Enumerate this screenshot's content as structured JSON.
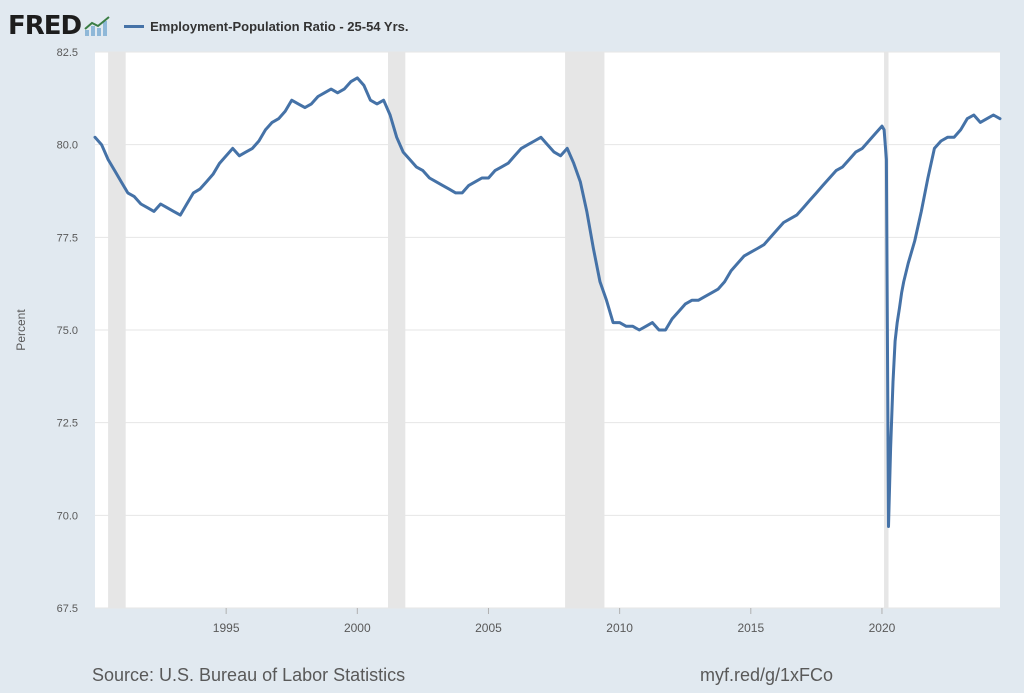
{
  "header": {
    "logo_text": "FRED",
    "logo_icon": "line-chart-icon"
  },
  "colors": {
    "background": "#e1e9f0",
    "plot_background": "#ffffff",
    "line": "#4572a7",
    "recession": "#e6e6e6",
    "grid": "#e6e6e6",
    "tick_text": "#595959",
    "legend_text": "#333333"
  },
  "chart_data": {
    "type": "line",
    "title": "",
    "ylabel": "Percent",
    "xlabel": "",
    "x_unit": "year",
    "ylim": [
      67.5,
      82.5
    ],
    "xlim": [
      1990.0,
      2024.5
    ],
    "y_ticks": [
      "67.5",
      "70.0",
      "72.5",
      "75.0",
      "77.5",
      "80.0",
      "82.5"
    ],
    "x_ticks": [
      "1995",
      "2000",
      "2005",
      "2010",
      "2015",
      "2020"
    ],
    "grid": "horizontal",
    "legend": "top-left",
    "recessions": [
      [
        1990.5,
        1991.17
      ],
      [
        2001.17,
        2001.83
      ],
      [
        2007.92,
        2009.42
      ],
      [
        2020.08,
        2020.25
      ]
    ],
    "series": [
      {
        "name": "Employment-Population Ratio - 25-54 Yrs.",
        "x": [
          1990.0,
          1990.25,
          1990.5,
          1990.75,
          1991.0,
          1991.25,
          1991.5,
          1991.75,
          1992.0,
          1992.25,
          1992.5,
          1992.75,
          1993.0,
          1993.25,
          1993.5,
          1993.75,
          1994.0,
          1994.25,
          1994.5,
          1994.75,
          1995.0,
          1995.25,
          1995.5,
          1995.75,
          1996.0,
          1996.25,
          1996.5,
          1996.75,
          1997.0,
          1997.25,
          1997.5,
          1997.75,
          1998.0,
          1998.25,
          1998.5,
          1998.75,
          1999.0,
          1999.25,
          1999.5,
          1999.75,
          2000.0,
          2000.25,
          2000.5,
          2000.75,
          2001.0,
          2001.25,
          2001.5,
          2001.75,
          2002.0,
          2002.25,
          2002.5,
          2002.75,
          2003.0,
          2003.25,
          2003.5,
          2003.75,
          2004.0,
          2004.25,
          2004.5,
          2004.75,
          2005.0,
          2005.25,
          2005.5,
          2005.75,
          2006.0,
          2006.25,
          2006.5,
          2006.75,
          2007.0,
          2007.25,
          2007.5,
          2007.75,
          2008.0,
          2008.25,
          2008.5,
          2008.75,
          2009.0,
          2009.25,
          2009.5,
          2009.75,
          2010.0,
          2010.25,
          2010.5,
          2010.75,
          2011.0,
          2011.25,
          2011.5,
          2011.75,
          2012.0,
          2012.25,
          2012.5,
          2012.75,
          2013.0,
          2013.25,
          2013.5,
          2013.75,
          2014.0,
          2014.25,
          2014.5,
          2014.75,
          2015.0,
          2015.25,
          2015.5,
          2015.75,
          2016.0,
          2016.25,
          2016.5,
          2016.75,
          2017.0,
          2017.25,
          2017.5,
          2017.75,
          2018.0,
          2018.25,
          2018.5,
          2018.75,
          2019.0,
          2019.25,
          2019.5,
          2019.75,
          2020.0,
          2020.08,
          2020.17,
          2020.25,
          2020.33,
          2020.42,
          2020.5,
          2020.58,
          2020.67,
          2020.75,
          2020.83,
          2021.0,
          2021.25,
          2021.5,
          2021.75,
          2022.0,
          2022.25,
          2022.5,
          2022.75,
          2023.0,
          2023.25,
          2023.5,
          2023.75,
          2024.0,
          2024.25,
          2024.5
        ],
        "values": [
          80.2,
          80.0,
          79.6,
          79.3,
          79.0,
          78.7,
          78.6,
          78.4,
          78.3,
          78.2,
          78.4,
          78.3,
          78.2,
          78.1,
          78.4,
          78.7,
          78.8,
          79.0,
          79.2,
          79.5,
          79.7,
          79.9,
          79.7,
          79.8,
          79.9,
          80.1,
          80.4,
          80.6,
          80.7,
          80.9,
          81.2,
          81.1,
          81.0,
          81.1,
          81.3,
          81.4,
          81.5,
          81.4,
          81.5,
          81.7,
          81.8,
          81.6,
          81.2,
          81.1,
          81.2,
          80.8,
          80.2,
          79.8,
          79.6,
          79.4,
          79.3,
          79.1,
          79.0,
          78.9,
          78.8,
          78.7,
          78.7,
          78.9,
          79.0,
          79.1,
          79.1,
          79.3,
          79.4,
          79.5,
          79.7,
          79.9,
          80.0,
          80.1,
          80.2,
          80.0,
          79.8,
          79.7,
          79.9,
          79.5,
          79.0,
          78.2,
          77.2,
          76.3,
          75.8,
          75.2,
          75.2,
          75.1,
          75.1,
          75.0,
          75.1,
          75.2,
          75.0,
          75.0,
          75.3,
          75.5,
          75.7,
          75.8,
          75.8,
          75.9,
          76.0,
          76.1,
          76.3,
          76.6,
          76.8,
          77.0,
          77.1,
          77.2,
          77.3,
          77.5,
          77.7,
          77.9,
          78.0,
          78.1,
          78.3,
          78.5,
          78.7,
          78.9,
          79.1,
          79.3,
          79.4,
          79.6,
          79.8,
          79.9,
          80.1,
          80.3,
          80.5,
          80.4,
          79.6,
          69.7,
          71.8,
          73.6,
          74.7,
          75.2,
          75.6,
          76.0,
          76.3,
          76.8,
          77.4,
          78.2,
          79.1,
          79.9,
          80.1,
          80.2,
          80.2,
          80.4,
          80.7,
          80.8,
          80.6,
          80.7,
          80.8,
          80.7
        ]
      }
    ]
  },
  "source": {
    "text": "Source: U.S. Bureau of Labor Statistics",
    "url": "myf.red/g/1xFCo"
  }
}
